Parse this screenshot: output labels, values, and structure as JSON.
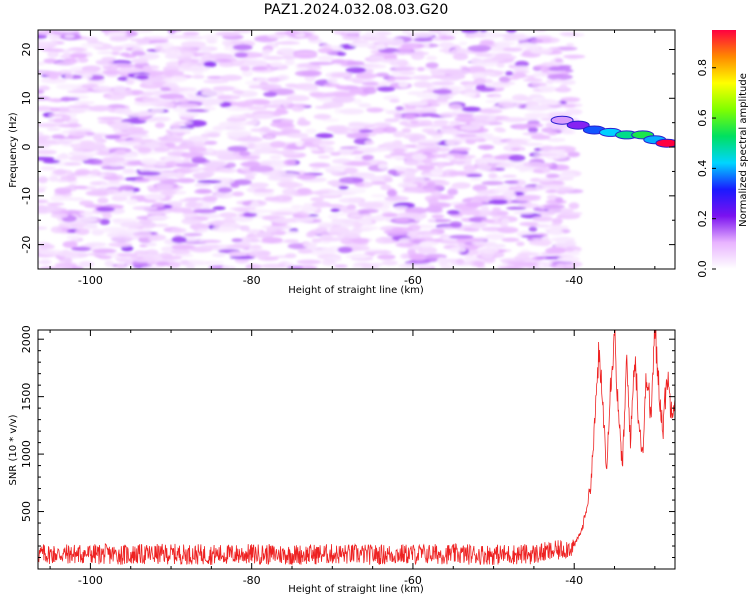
{
  "figure_title": "PAZ1.2024.032.08.03.G20",
  "colors": {
    "snr_line": "#ee2222",
    "axis": "#000000"
  },
  "chart_data": [
    {
      "type": "heatmap",
      "xlabel": "Height of straight line (km)",
      "ylabel": "Frequency (Hz)",
      "xlim": [
        -106.5,
        -27.5
      ],
      "ylim": [
        -25,
        24
      ],
      "x_ticks": [
        -100,
        -80,
        -60,
        -40
      ],
      "y_ticks": [
        -20,
        -10,
        0,
        10,
        20
      ],
      "colorbar": {
        "label": "Normalized spectral amplitude",
        "range": [
          0,
          0.95
        ],
        "ticks": [
          0.0,
          0.2,
          0.4,
          0.6,
          0.8
        ],
        "colormap": [
          "#ffffff",
          "#e8b3ff",
          "#7b12f0",
          "#1a1aff",
          "#00d5ff",
          "#00e060",
          "#80ff00",
          "#ffff00",
          "#ff8800",
          "#ff0040"
        ]
      },
      "signal_track": [
        {
          "x": -41.5,
          "freq": 5.5,
          "amp": 0.12
        },
        {
          "x": -39.5,
          "freq": 4.5,
          "amp": 0.2
        },
        {
          "x": -37.5,
          "freq": 3.5,
          "amp": 0.35
        },
        {
          "x": -35.5,
          "freq": 3.0,
          "amp": 0.42
        },
        {
          "x": -33.5,
          "freq": 2.5,
          "amp": 0.5
        },
        {
          "x": -31.5,
          "freq": 2.5,
          "amp": 0.55
        },
        {
          "x": -30.0,
          "freq": 1.5,
          "amp": 0.4
        },
        {
          "x": -28.5,
          "freq": 0.8,
          "amp": 0.95
        }
      ]
    },
    {
      "type": "line",
      "xlabel": "Height of straight line (km)",
      "ylabel": "SNR (10 * v/v)",
      "xlim": [
        -106.5,
        -27.5
      ],
      "ylim": [
        0,
        2080
      ],
      "x_ticks": [
        -100,
        -80,
        -60,
        -40
      ],
      "y_ticks": [
        500,
        1000,
        1500,
        2000
      ],
      "series": [
        {
          "x": [
            -106.5,
            -100,
            -95,
            -90,
            -85,
            -80,
            -75,
            -70,
            -65,
            -60,
            -55,
            -50,
            -45,
            -42,
            -40,
            -39,
            -38,
            -37.5,
            -37,
            -36.5,
            -36,
            -35.5,
            -35,
            -34.5,
            -34,
            -33.5,
            -33,
            -32.5,
            -32,
            -31.5,
            -31,
            -30.5,
            -30,
            -29.5,
            -29,
            -28.5,
            -28,
            -27.5
          ],
          "y": [
            130,
            130,
            125,
            130,
            125,
            130,
            125,
            130,
            125,
            130,
            130,
            125,
            130,
            160,
            200,
            350,
            700,
            1200,
            1850,
            1500,
            900,
            1600,
            2080,
            1300,
            900,
            1800,
            1100,
            1900,
            1300,
            1000,
            1750,
            1300,
            2080,
            1600,
            1200,
            1700,
            1400,
            1500
          ]
        }
      ]
    }
  ]
}
